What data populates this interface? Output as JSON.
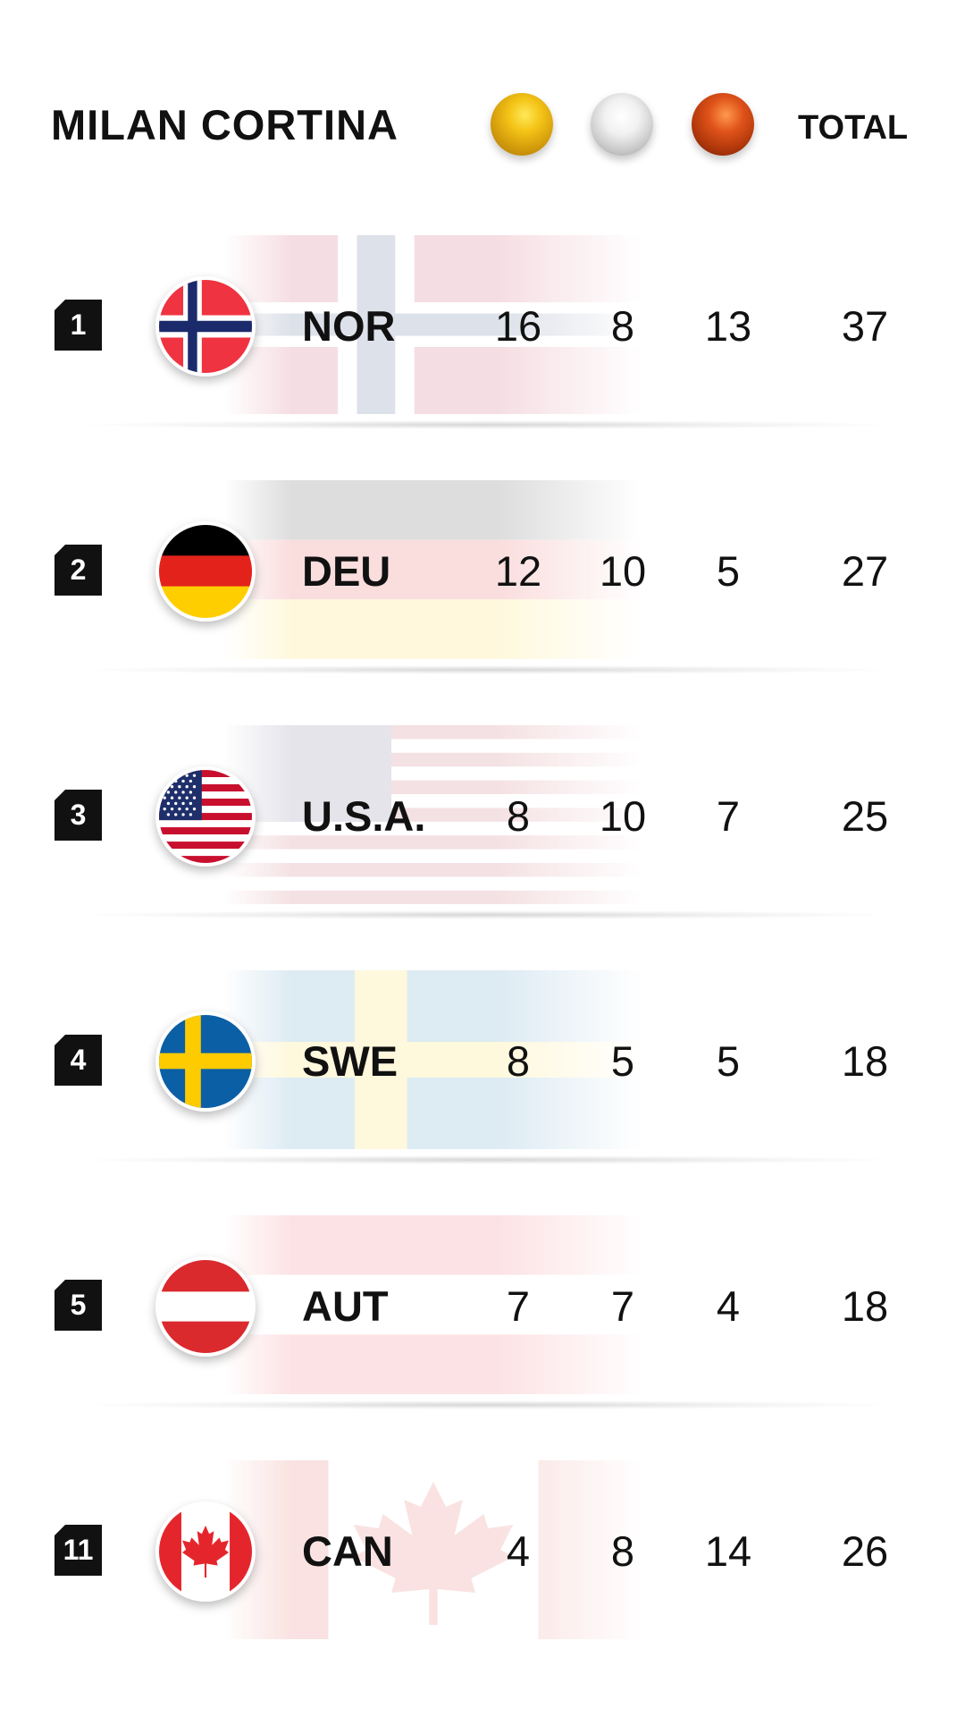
{
  "title": "MILAN CORTINA",
  "total_label": "TOTAL",
  "medal_icons": [
    "gold-medal-icon",
    "silver-medal-icon",
    "bronze-medal-icon"
  ],
  "colors": {
    "gold": "#F4C417",
    "silver": "#D4D4D4",
    "bronze": "#B53A0C",
    "text": "#111111",
    "rank_badge": "#111111"
  },
  "rows": [
    {
      "rank": "1",
      "code": "NOR",
      "flag": "norway-flag-icon",
      "gold": "16",
      "silver": "8",
      "bronze": "13",
      "total": "37"
    },
    {
      "rank": "2",
      "code": "DEU",
      "flag": "germany-flag-icon",
      "gold": "12",
      "silver": "10",
      "bronze": "5",
      "total": "27"
    },
    {
      "rank": "3",
      "code": "U.S.A.",
      "flag": "usa-flag-icon",
      "gold": "8",
      "silver": "10",
      "bronze": "7",
      "total": "25"
    },
    {
      "rank": "4",
      "code": "SWE",
      "flag": "sweden-flag-icon",
      "gold": "8",
      "silver": "5",
      "bronze": "5",
      "total": "18"
    },
    {
      "rank": "5",
      "code": "AUT",
      "flag": "austria-flag-icon",
      "gold": "7",
      "silver": "7",
      "bronze": "4",
      "total": "18"
    },
    {
      "rank": "11",
      "code": "CAN",
      "flag": "canada-flag-icon",
      "gold": "4",
      "silver": "8",
      "bronze": "14",
      "total": "26"
    }
  ]
}
